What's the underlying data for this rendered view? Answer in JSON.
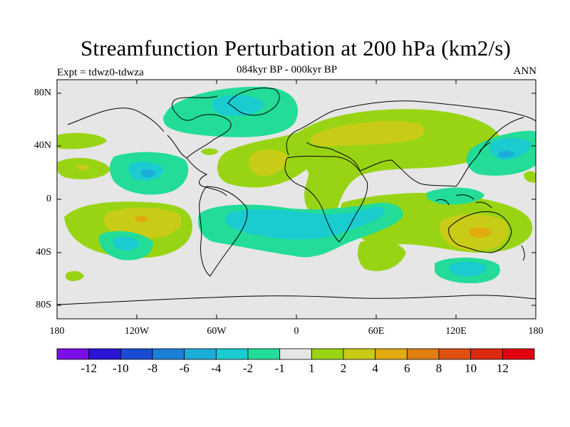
{
  "header": {
    "title": "Streamfunction Perturbation at 200 hPa (km2/s)",
    "subtitle": "084kyr BP - 000kyr BP",
    "left_label": "Expt = tdwz0-tdwza",
    "right_label": "ANN"
  },
  "map": {
    "projection": "cylindrical-equidistant",
    "lon_range": [
      -180,
      180
    ],
    "lat_range": [
      -90,
      90
    ],
    "y_ticks": [
      "80N",
      "40N",
      "0",
      "40S",
      "80S"
    ],
    "x_ticks": [
      "180",
      "120W",
      "60W",
      "0",
      "60E",
      "120E",
      "180"
    ]
  },
  "colorbar": {
    "labels": [
      "-12",
      "-10",
      "-8",
      "-6",
      "-4",
      "-2",
      "-1",
      "1",
      "2",
      "4",
      "6",
      "8",
      "10",
      "12"
    ],
    "colors": [
      "#7b0ee6",
      "#2a14d6",
      "#1a4bd4",
      "#1b7fd6",
      "#1aaed8",
      "#1acbd0",
      "#22dc98",
      "#e6e6e6",
      "#99d414",
      "#c9cc16",
      "#e0aa10",
      "#e07e12",
      "#df4f10",
      "#dc2a10",
      "#e00010"
    ]
  },
  "colors": {
    "neutral": "#e6e6e6",
    "coast": "#000000"
  }
}
